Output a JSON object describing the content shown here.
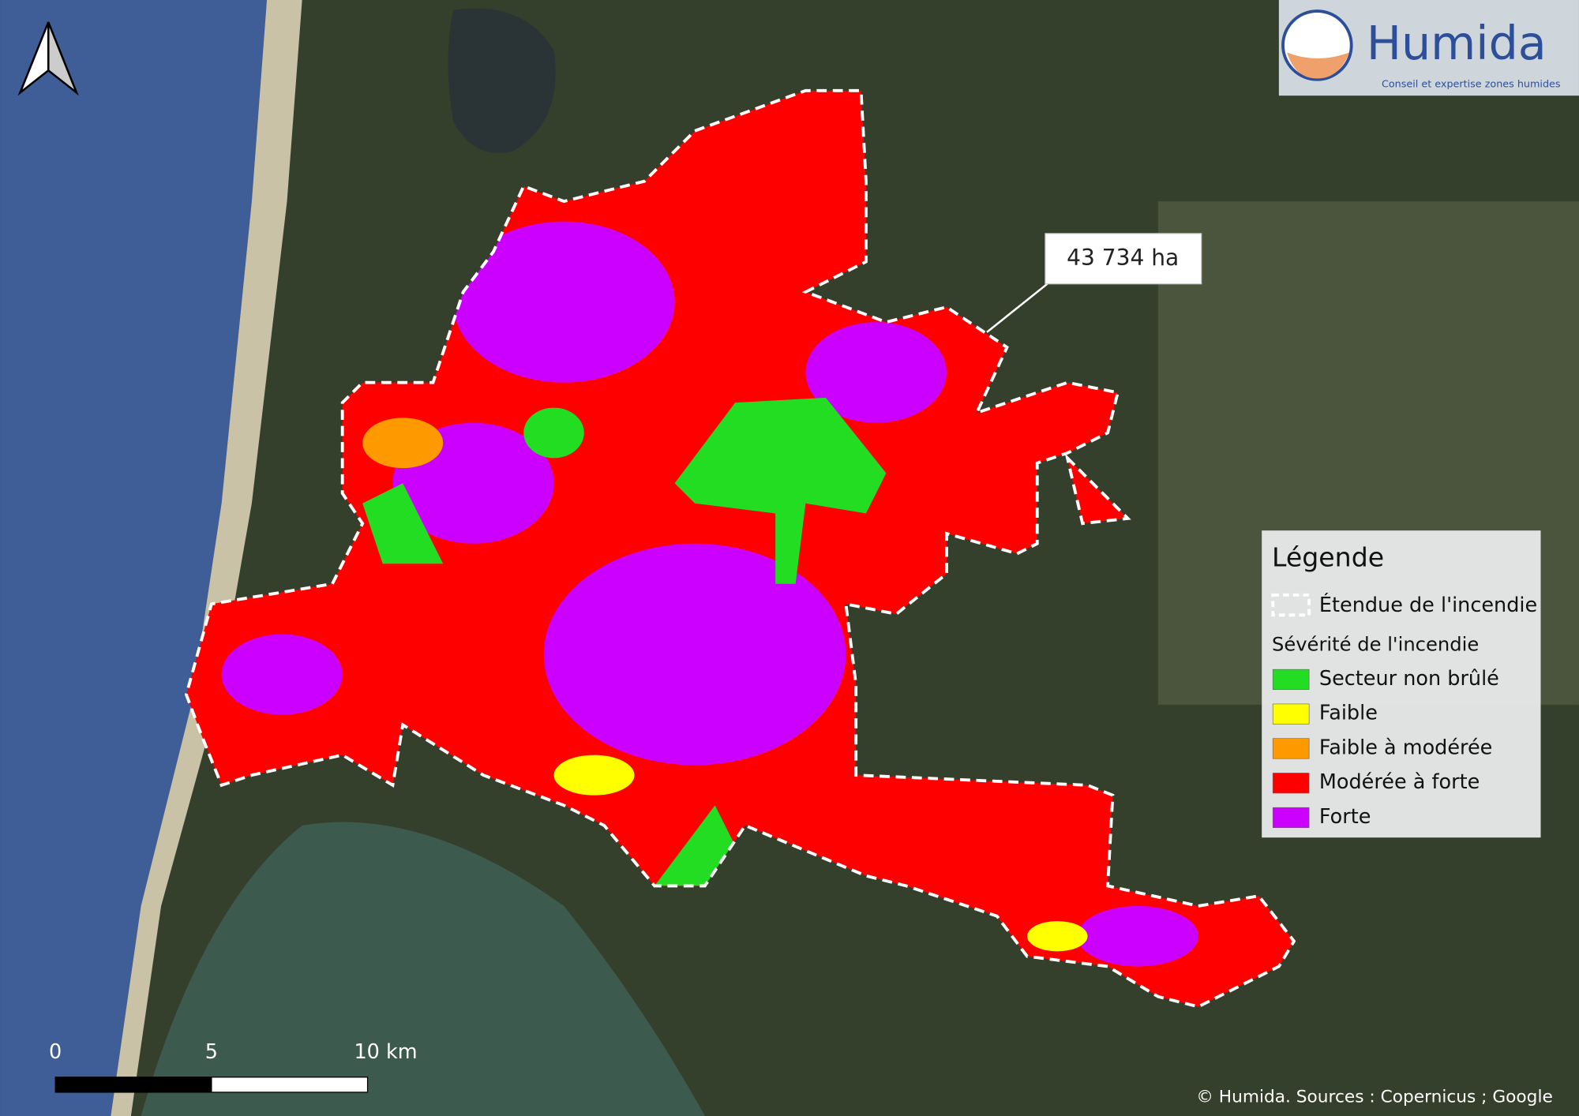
{
  "logo": {
    "name": "Humida",
    "tagline": "Conseil et expertise zones humides"
  },
  "area_label": "43 734 ha",
  "legend": {
    "title": "Légende",
    "extent": "Étendue de l'incendie",
    "severity_title": "Sévérité de l'incendie",
    "items": [
      {
        "label": "Secteur non brûlé",
        "color": "#22dd22"
      },
      {
        "label": "Faible",
        "color": "#ffff00"
      },
      {
        "label": "Faible à modérée",
        "color": "#ff9900"
      },
      {
        "label": "Modérée à forte",
        "color": "#ff0000"
      },
      {
        "label": "Forte",
        "color": "#cc00ff"
      }
    ]
  },
  "scale_bar": {
    "labels": [
      "0",
      "5",
      "10 km"
    ]
  },
  "attribution": "© Humida. Sources : Copernicus ; Google"
}
